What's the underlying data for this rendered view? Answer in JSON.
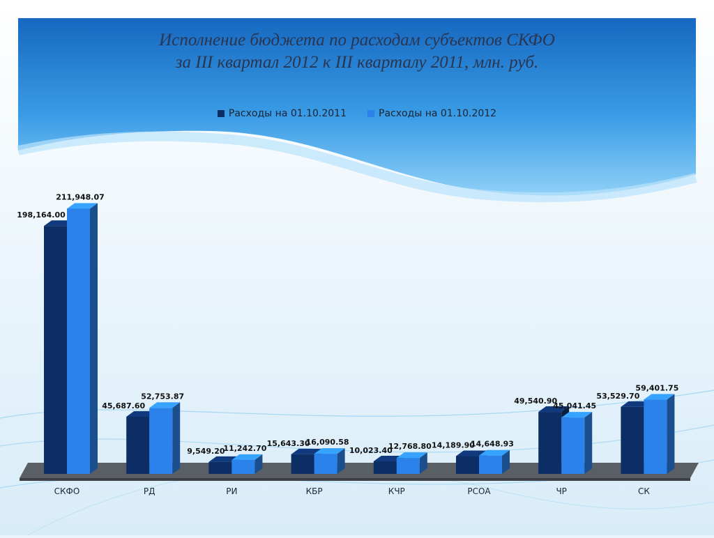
{
  "title": {
    "line1": "Исполнение бюджета по расходам субъектов СКФО",
    "line2": "за III квартал 2012 к III кварталу 2011, млн. руб."
  },
  "colors": {
    "series_2011": "#0d2e64",
    "series_2012": "#2b82ea",
    "background_top": "#1a78c8",
    "background_bottom": "#eaf4fb"
  },
  "chart_data": {
    "type": "bar",
    "title": "Исполнение бюджета по расходам субъектов СКФО за III квартал 2012 к III кварталу 2011, млн. руб.",
    "categories": [
      "СКФО",
      "РД",
      "РИ",
      "КБР",
      "КЧР",
      "РСОА",
      "ЧР",
      "СК"
    ],
    "series": [
      {
        "name": "Расходы на 01.10.2011",
        "values": [
          198164.0,
          45687.6,
          9549.2,
          15643.3,
          10023.4,
          14189.9,
          49540.9,
          53529.7
        ],
        "labels": [
          "198,164.00",
          "45,687.60",
          "9,549.20",
          "15,643.30",
          "10,023.40",
          "14,189.90",
          "49,540.90",
          "53,529.70"
        ]
      },
      {
        "name": "Расходы на 01.10.2012",
        "values": [
          211948.07,
          52753.87,
          11242.7,
          16090.58,
          12768.8,
          14648.93,
          45041.45,
          59401.75
        ],
        "labels": [
          "211,948.07",
          "52,753.87",
          "11,242.70",
          "16,090.58",
          "12,768.80",
          "14,648.93",
          "45,041.45",
          "59,401.75"
        ]
      }
    ],
    "xlabel": "",
    "ylabel": "",
    "ylim": [
      0,
      220000
    ],
    "grid": false,
    "legend_position": "top-center",
    "style": "3d-columns"
  }
}
